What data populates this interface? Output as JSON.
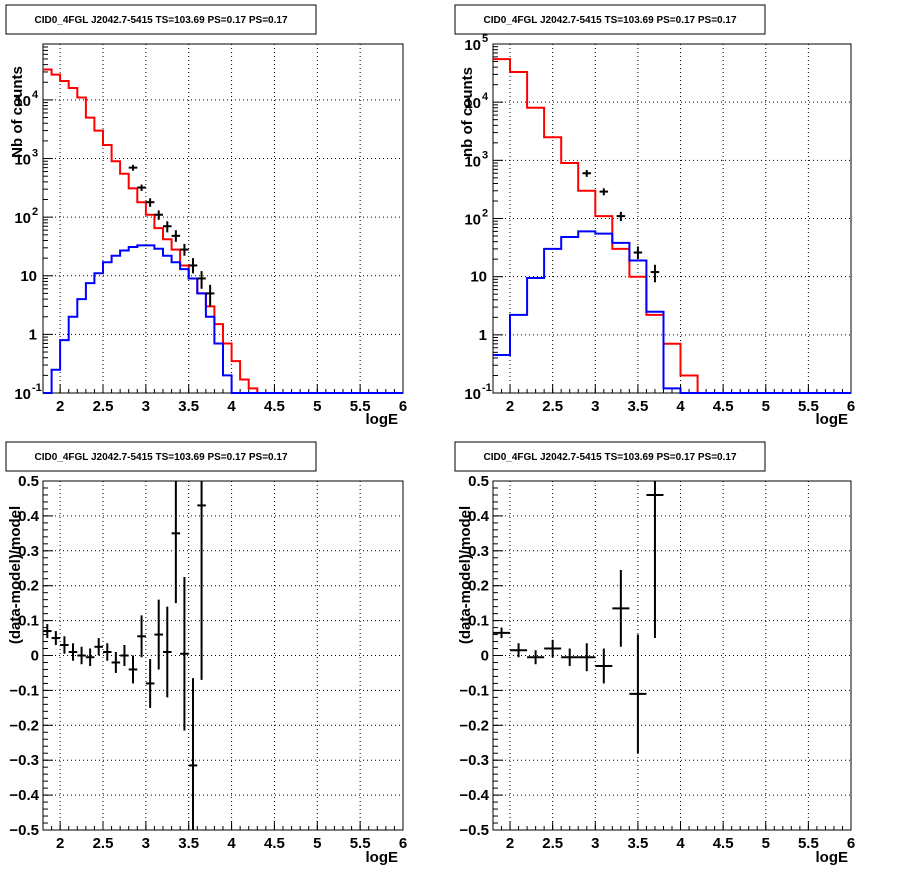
{
  "colors": {
    "data": "#000000",
    "model_total": "#ff0000",
    "model_source": "#0000ff",
    "grid": "#000000",
    "background": "#ffffff"
  },
  "chart_data": [
    {
      "id": "top-left",
      "type": "line",
      "title": "CID0_4FGL J2042.7-5415 TS=103.69 PS=0.17 PS=0.17",
      "xlabel": "logE",
      "ylabel": "Nb of counts",
      "xlim": [
        1.8,
        6.0
      ],
      "ylim": [
        0.1,
        90000
      ],
      "yscale": "log",
      "grid": true,
      "xticks": [
        "2",
        "2.5",
        "3",
        "3.5",
        "4",
        "4.5",
        "5",
        "5.5",
        "6"
      ],
      "yticks": [
        {
          "v": 0.1,
          "base": "10",
          "exp": "-1"
        },
        {
          "v": 1,
          "label": "1"
        },
        {
          "v": 10,
          "label": "10"
        },
        {
          "v": 100,
          "base": "10",
          "exp": "2"
        },
        {
          "v": 1000,
          "base": "10",
          "exp": "3"
        },
        {
          "v": 10000,
          "base": "10",
          "exp": "4"
        }
      ],
      "bin_edges": [
        1.8,
        1.9,
        2.0,
        2.1,
        2.2,
        2.3,
        2.4,
        2.5,
        2.6,
        2.7,
        2.8,
        2.9,
        3.0,
        3.1,
        3.2,
        3.3,
        3.4,
        3.5,
        3.6,
        3.7,
        3.8,
        3.9,
        4.0,
        4.1,
        4.2,
        4.3,
        4.4,
        4.5,
        4.6,
        4.7,
        4.8,
        4.9,
        5.0,
        5.1,
        5.2,
        5.3,
        5.4,
        5.5,
        5.6,
        5.7,
        5.8,
        5.9,
        6.0
      ],
      "series": [
        {
          "role": "model_total",
          "values": [
            33000,
            27000,
            21000,
            16000,
            11000,
            5000,
            3000,
            1700,
            900,
            550,
            310,
            180,
            110,
            65,
            42,
            28,
            15,
            9,
            5,
            3,
            1.5,
            0.7,
            0.35,
            0.17,
            0.12,
            0.1,
            0.1,
            0.1,
            0.1,
            0.1,
            0.1,
            0.1,
            0.1,
            0.1,
            0.1,
            0.1,
            0.1,
            0.1,
            0.1,
            0.1,
            0.1,
            0.1
          ]
        },
        {
          "role": "model_source",
          "values": [
            0.07,
            0.25,
            0.8,
            2,
            4,
            7.5,
            11,
            17,
            22,
            27,
            31,
            33,
            33,
            29,
            22,
            17,
            13,
            9,
            5,
            2,
            0.7,
            0.2,
            0.1,
            0.1,
            0.1,
            0.1,
            0.1,
            0.1,
            0.1,
            0.1,
            0.1,
            0.1,
            0.1,
            0.1,
            0.1,
            0.1,
            0.1,
            0.1,
            0.1,
            0.1,
            0.1,
            0.1
          ]
        }
      ],
      "points": [
        {
          "x": 2.85,
          "y": 700,
          "ylo": 620,
          "yhi": 780
        },
        {
          "x": 2.95,
          "y": 320,
          "ylo": 280,
          "yhi": 360
        },
        {
          "x": 3.05,
          "y": 180,
          "ylo": 150,
          "yhi": 210
        },
        {
          "x": 3.15,
          "y": 110,
          "ylo": 90,
          "yhi": 130
        },
        {
          "x": 3.25,
          "y": 70,
          "ylo": 55,
          "yhi": 85
        },
        {
          "x": 3.35,
          "y": 48,
          "ylo": 38,
          "yhi": 60
        },
        {
          "x": 3.45,
          "y": 28,
          "ylo": 22,
          "yhi": 35
        },
        {
          "x": 3.55,
          "y": 15,
          "ylo": 11,
          "yhi": 20
        },
        {
          "x": 3.65,
          "y": 9,
          "ylo": 6,
          "yhi": 12
        },
        {
          "x": 3.75,
          "y": 5,
          "ylo": 3,
          "yhi": 7
        }
      ]
    },
    {
      "id": "top-right",
      "type": "line",
      "title": "CID0_4FGL J2042.7-5415 TS=103.69 PS=0.17 PS=0.17",
      "xlabel": "logE",
      "ylabel": "nb of counts",
      "xlim": [
        1.8,
        6.0
      ],
      "ylim": [
        0.1,
        100000
      ],
      "yscale": "log",
      "grid": true,
      "xticks": [
        "2",
        "2.5",
        "3",
        "3.5",
        "4",
        "4.5",
        "5",
        "5.5",
        "6"
      ],
      "yticks": [
        {
          "v": 0.1,
          "base": "10",
          "exp": "-1"
        },
        {
          "v": 1,
          "label": "1"
        },
        {
          "v": 10,
          "label": "10"
        },
        {
          "v": 100,
          "base": "10",
          "exp": "2"
        },
        {
          "v": 1000,
          "base": "10",
          "exp": "3"
        },
        {
          "v": 10000,
          "base": "10",
          "exp": "4"
        },
        {
          "v": 100000,
          "base": "10",
          "exp": "5"
        }
      ],
      "bin_edges": [
        1.8,
        2.0,
        2.2,
        2.4,
        2.6,
        2.8,
        3.0,
        3.2,
        3.4,
        3.6,
        3.8,
        4.0,
        4.2,
        4.4,
        4.6,
        4.8,
        5.0,
        5.2,
        5.4,
        5.6,
        5.8,
        6.0
      ],
      "series": [
        {
          "role": "model_total",
          "values": [
            55000,
            33000,
            8000,
            2500,
            900,
            300,
            110,
            30,
            10,
            2.2,
            0.7,
            0.2,
            0.1,
            0.1,
            0.1,
            0.1,
            0.1,
            0.1,
            0.1,
            0.1,
            0.1
          ]
        },
        {
          "role": "model_source",
          "values": [
            0.45,
            2.2,
            9.5,
            30,
            48,
            60,
            55,
            38,
            19,
            2.5,
            0.12,
            0.1,
            0.1,
            0.1,
            0.1,
            0.1,
            0.1,
            0.1,
            0.1,
            0.1,
            0.1
          ]
        }
      ],
      "points": [
        {
          "x": 2.9,
          "y": 600,
          "ylo": 520,
          "yhi": 680
        },
        {
          "x": 3.1,
          "y": 290,
          "ylo": 250,
          "yhi": 330
        },
        {
          "x": 3.3,
          "y": 110,
          "ylo": 90,
          "yhi": 130
        },
        {
          "x": 3.5,
          "y": 26,
          "ylo": 20,
          "yhi": 33
        },
        {
          "x": 3.7,
          "y": 12,
          "ylo": 8,
          "yhi": 16
        }
      ]
    },
    {
      "id": "bottom-left",
      "type": "scatter",
      "title": "CID0_4FGL J2042.7-5415 TS=103.69 PS=0.17 PS=0.17",
      "xlabel": "logE",
      "ylabel": "(data-model)/model",
      "xlim": [
        1.8,
        6.0
      ],
      "ylim": [
        -0.5,
        0.5
      ],
      "grid": true,
      "xticks": [
        "2",
        "2.5",
        "3",
        "3.5",
        "4",
        "4.5",
        "5",
        "5.5",
        "6"
      ],
      "yticks": [
        "−0.5",
        "−0.4",
        "−0.3",
        "−0.2",
        "−0.1",
        "0",
        "0.1",
        "0.2",
        "0.3",
        "0.4",
        "0.5"
      ],
      "xerr": 0.05,
      "points": [
        {
          "x": 1.85,
          "y": 0.07,
          "err": 0.02
        },
        {
          "x": 1.95,
          "y": 0.05,
          "err": 0.02
        },
        {
          "x": 2.05,
          "y": 0.03,
          "err": 0.025
        },
        {
          "x": 2.15,
          "y": 0.01,
          "err": 0.025
        },
        {
          "x": 2.25,
          "y": 0.0,
          "err": 0.025
        },
        {
          "x": 2.35,
          "y": -0.005,
          "err": 0.025
        },
        {
          "x": 2.45,
          "y": 0.025,
          "err": 0.025
        },
        {
          "x": 2.55,
          "y": 0.01,
          "err": 0.025
        },
        {
          "x": 2.65,
          "y": -0.02,
          "err": 0.03
        },
        {
          "x": 2.75,
          "y": 0.0,
          "err": 0.03
        },
        {
          "x": 2.85,
          "y": -0.04,
          "err": 0.04
        },
        {
          "x": 2.95,
          "y": 0.055,
          "err": 0.06
        },
        {
          "x": 3.05,
          "y": -0.08,
          "err": 0.07
        },
        {
          "x": 3.15,
          "y": 0.06,
          "err": 0.1
        },
        {
          "x": 3.25,
          "y": 0.01,
          "err": 0.13
        },
        {
          "x": 3.35,
          "y": 0.35,
          "err": 0.2
        },
        {
          "x": 3.45,
          "y": 0.005,
          "err": 0.22
        },
        {
          "x": 3.55,
          "y": -0.315,
          "err": 0.25
        },
        {
          "x": 3.65,
          "y": 0.43,
          "err": 0.5
        }
      ]
    },
    {
      "id": "bottom-right",
      "type": "scatter",
      "title": "CID0_4FGL J2042.7-5415 TS=103.69 PS=0.17 PS=0.17",
      "xlabel": "logE",
      "ylabel": "(data-model)/model",
      "xlim": [
        1.8,
        6.0
      ],
      "ylim": [
        -0.5,
        0.5
      ],
      "grid": true,
      "xticks": [
        "2",
        "2.5",
        "3",
        "3.5",
        "4",
        "4.5",
        "5",
        "5.5",
        "6"
      ],
      "yticks": [
        "−0.5",
        "−0.4",
        "−0.3",
        "−0.2",
        "−0.1",
        "0",
        "0.1",
        "0.2",
        "0.3",
        "0.4",
        "0.5"
      ],
      "xerr": 0.1,
      "points": [
        {
          "x": 1.9,
          "y": 0.065,
          "err": 0.015
        },
        {
          "x": 2.1,
          "y": 0.015,
          "err": 0.02
        },
        {
          "x": 2.3,
          "y": -0.005,
          "err": 0.02
        },
        {
          "x": 2.5,
          "y": 0.02,
          "err": 0.025
        },
        {
          "x": 2.7,
          "y": -0.005,
          "err": 0.025
        },
        {
          "x": 2.9,
          "y": -0.005,
          "err": 0.04
        },
        {
          "x": 3.1,
          "y": -0.03,
          "err": 0.05
        },
        {
          "x": 3.3,
          "y": 0.135,
          "err": 0.11
        },
        {
          "x": 3.5,
          "y": -0.11,
          "err": 0.17
        },
        {
          "x": 3.7,
          "y": 0.46,
          "err": 0.41
        }
      ]
    }
  ]
}
